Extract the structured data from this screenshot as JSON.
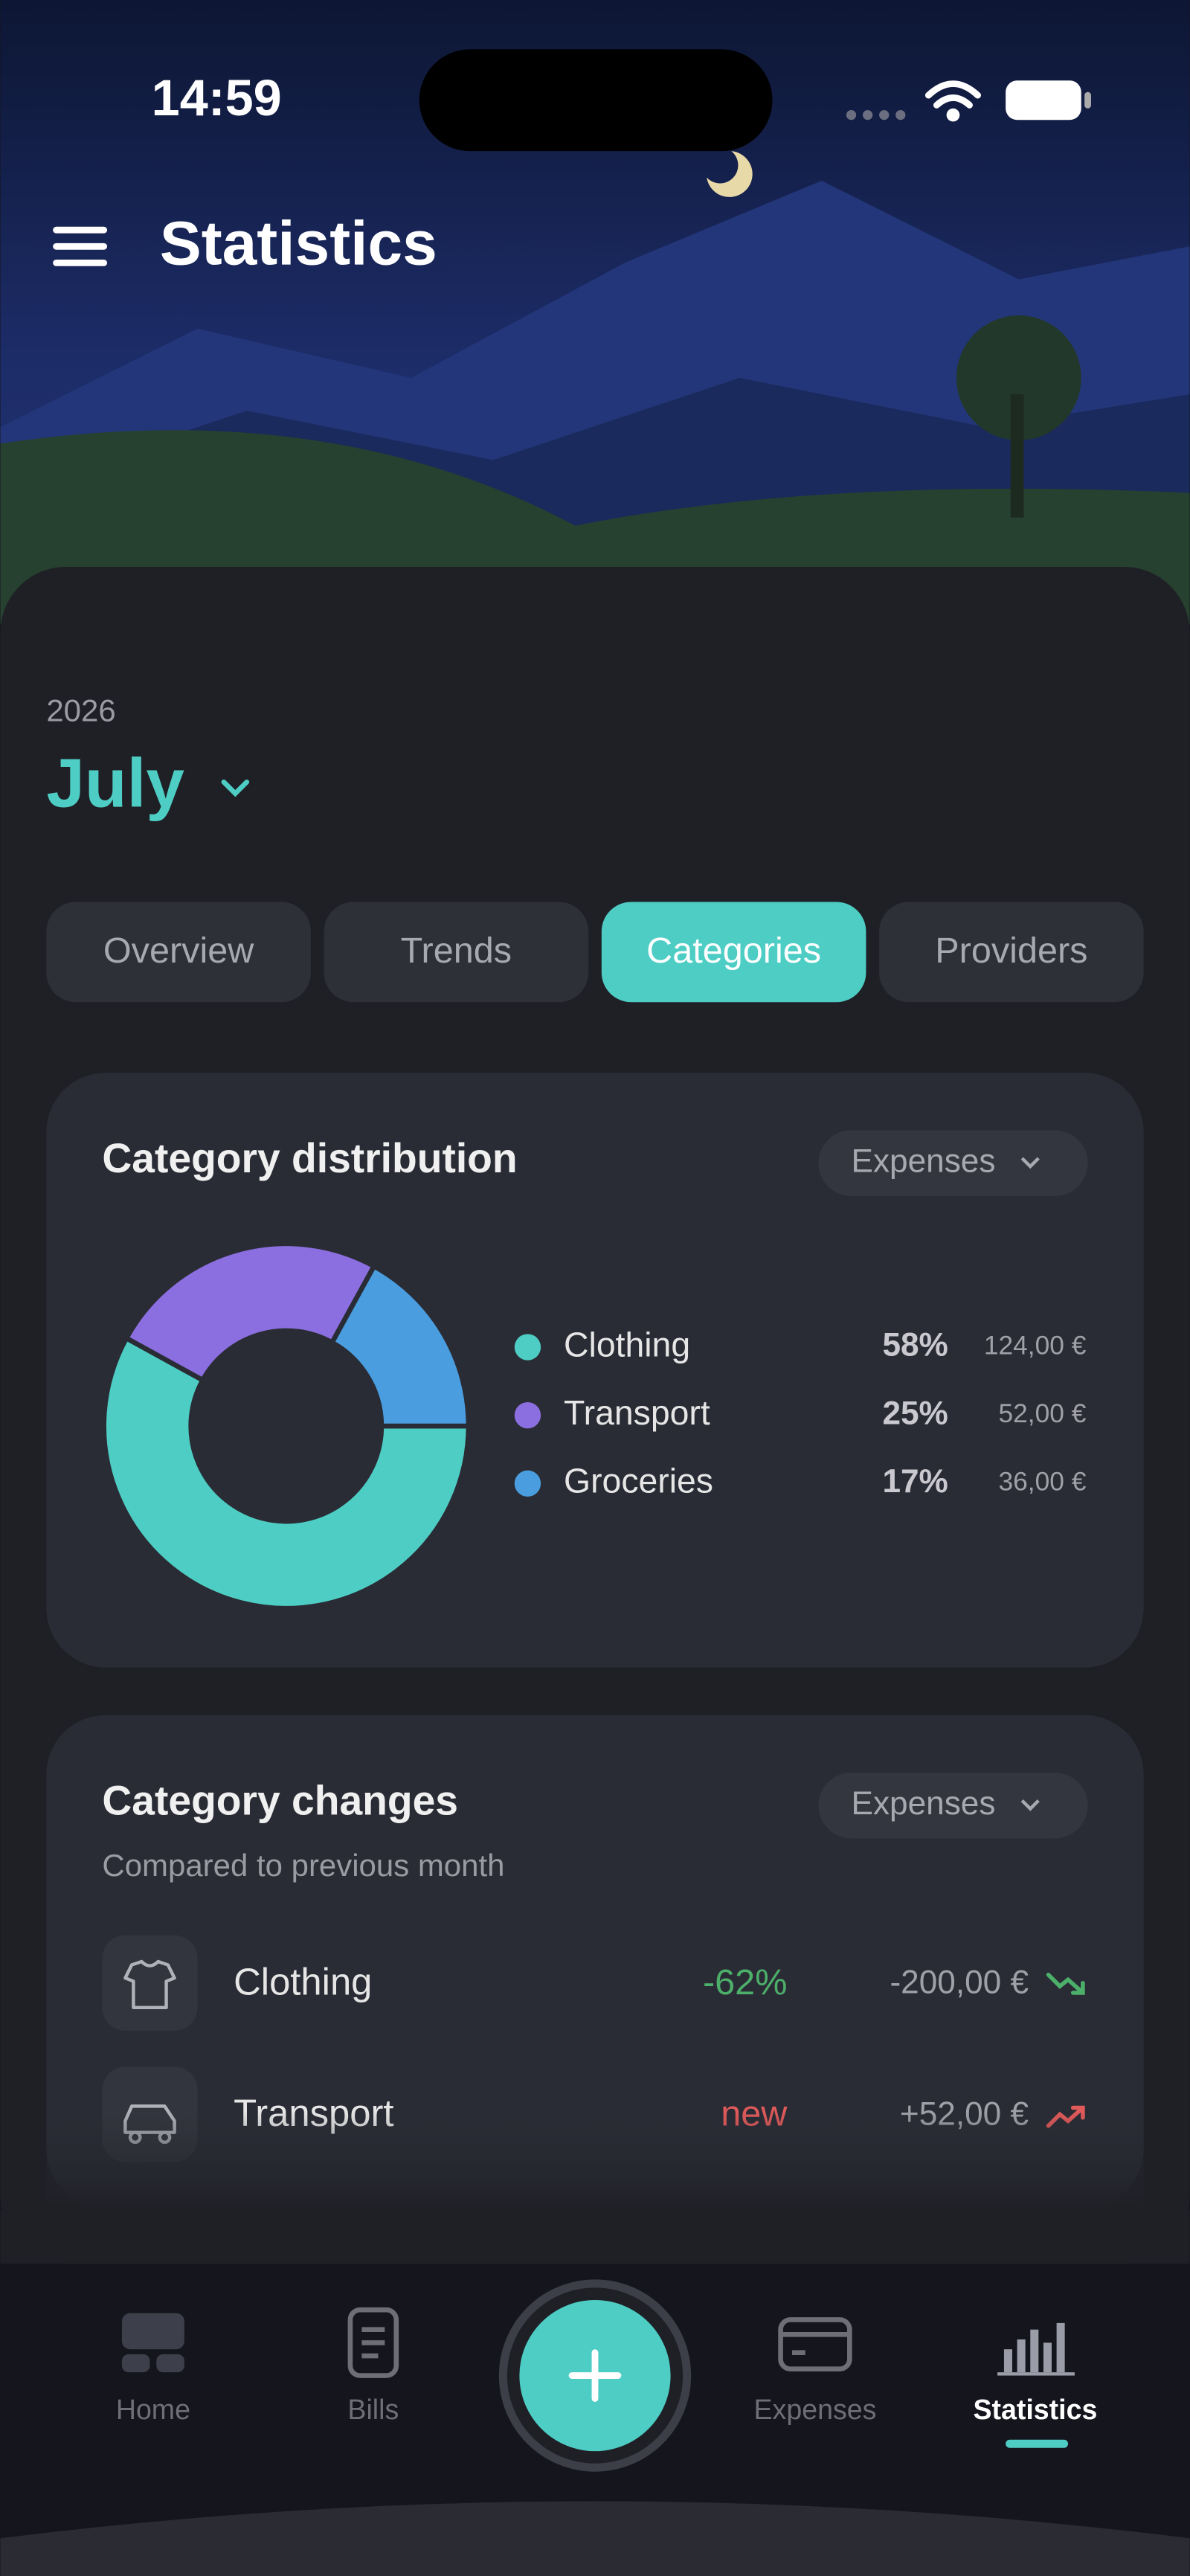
{
  "status_bar": {
    "time": "14:59"
  },
  "header": {
    "title": "Statistics"
  },
  "period": {
    "year": "2026",
    "month": "July"
  },
  "tabs": {
    "items": [
      "Overview",
      "Trends",
      "Categories",
      "Providers"
    ],
    "active": 2
  },
  "category_distribution": {
    "title": "Category distribution",
    "filter": "Expenses",
    "chart_data": {
      "type": "donut",
      "categories": [
        "Clothing",
        "Transport",
        "Groceries"
      ],
      "values": [
        58,
        25,
        17
      ],
      "value_labels": [
        "58%",
        "25%",
        "17%"
      ],
      "amounts": [
        "124,00 €",
        "52,00 €",
        "36,00 €"
      ],
      "colors": [
        "#4ecdc4",
        "#8b6fe0",
        "#4a9ee0"
      ]
    }
  },
  "category_changes": {
    "title": "Category changes",
    "subtitle": "Compared to previous month",
    "filter": "Expenses",
    "rows": [
      {
        "name": "Clothing",
        "change": "-62%",
        "amount": "-200,00 €",
        "color": "#4caf6a"
      },
      {
        "name": "Transport",
        "change": "new",
        "amount": "+52,00 €",
        "color": "#e05a5a"
      }
    ]
  },
  "nav": {
    "items": [
      "Home",
      "Bills",
      "Expenses",
      "Statistics"
    ],
    "active": 3
  }
}
